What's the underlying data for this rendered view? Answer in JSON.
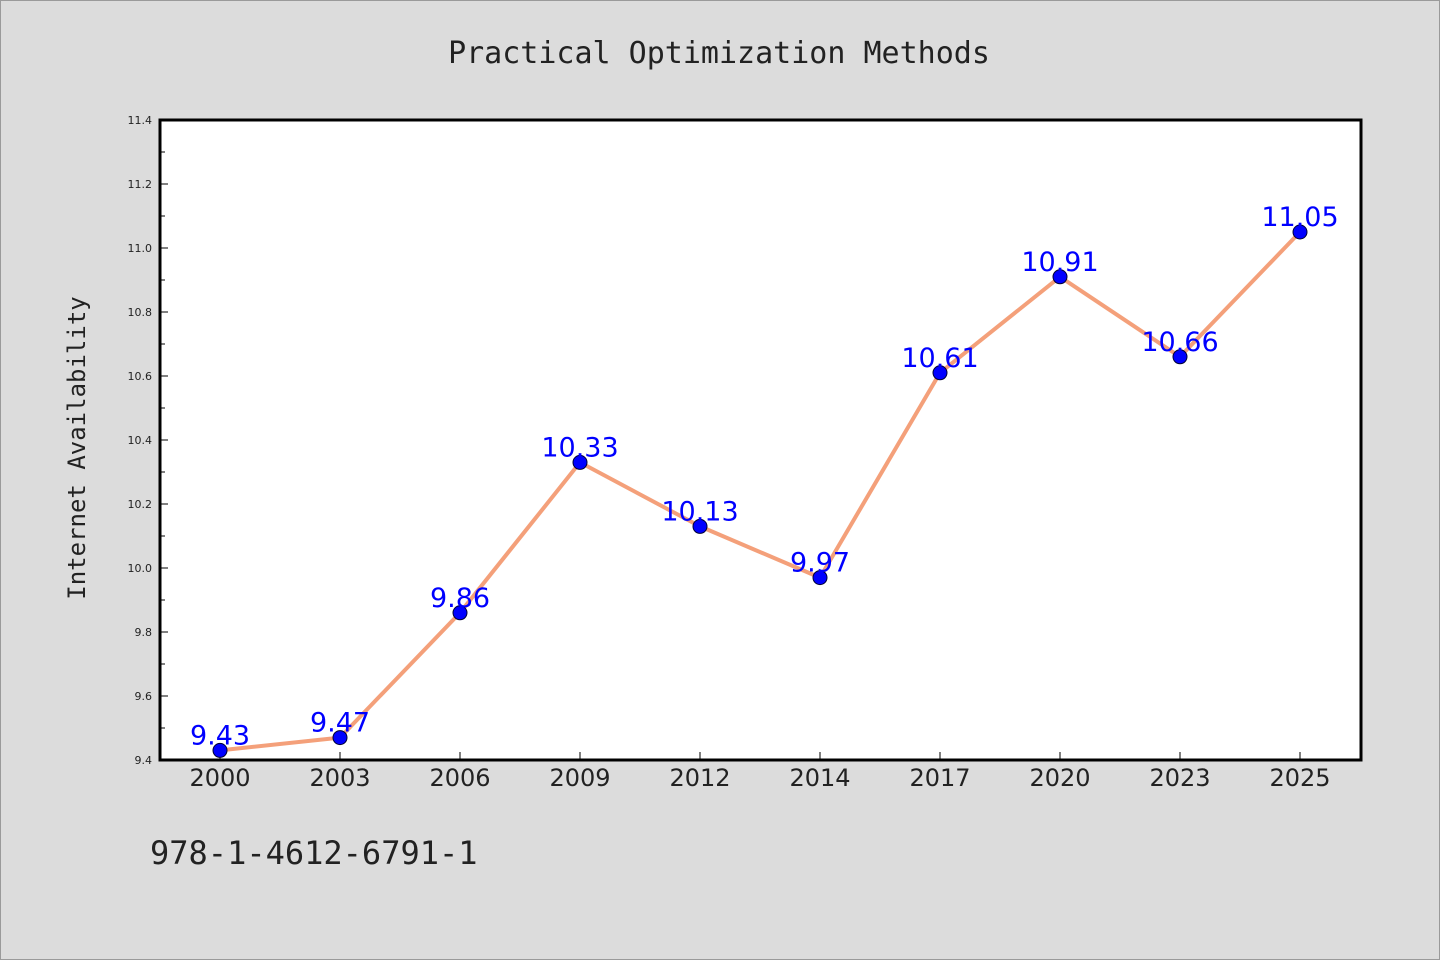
{
  "chart_data": {
    "type": "line",
    "title": "Practical Optimization Methods",
    "xlabel": "",
    "ylabel": "Internet Availability",
    "categories": [
      "2000",
      "2003",
      "2006",
      "2009",
      "2012",
      "2014",
      "2017",
      "2020",
      "2023",
      "2025"
    ],
    "series": [
      {
        "values": [
          9.43,
          9.47,
          9.86,
          10.33,
          10.13,
          9.97,
          10.61,
          10.91,
          10.66,
          11.05
        ],
        "data_labels": [
          "9.43",
          "9.47",
          "9.86",
          "10.33",
          "10.13",
          "9.97",
          "10.61",
          "10.91",
          "10.66",
          "11.05"
        ]
      }
    ],
    "ylim": [
      9.4,
      11.4
    ],
    "yticks": [
      "9.4",
      "9.6",
      "9.8",
      "10.0",
      "10.2",
      "10.4",
      "10.6",
      "10.8",
      "11.0",
      "11.2",
      "11.4"
    ],
    "grid": false,
    "legend": "none",
    "colors": {
      "line": "#f4a07a",
      "marker": "#0000ff",
      "data_label": "#0000ff",
      "background": "#dcdcdc",
      "plot_background": "#ffffff"
    }
  },
  "footer": {
    "text": "978-1-4612-6791-1"
  }
}
